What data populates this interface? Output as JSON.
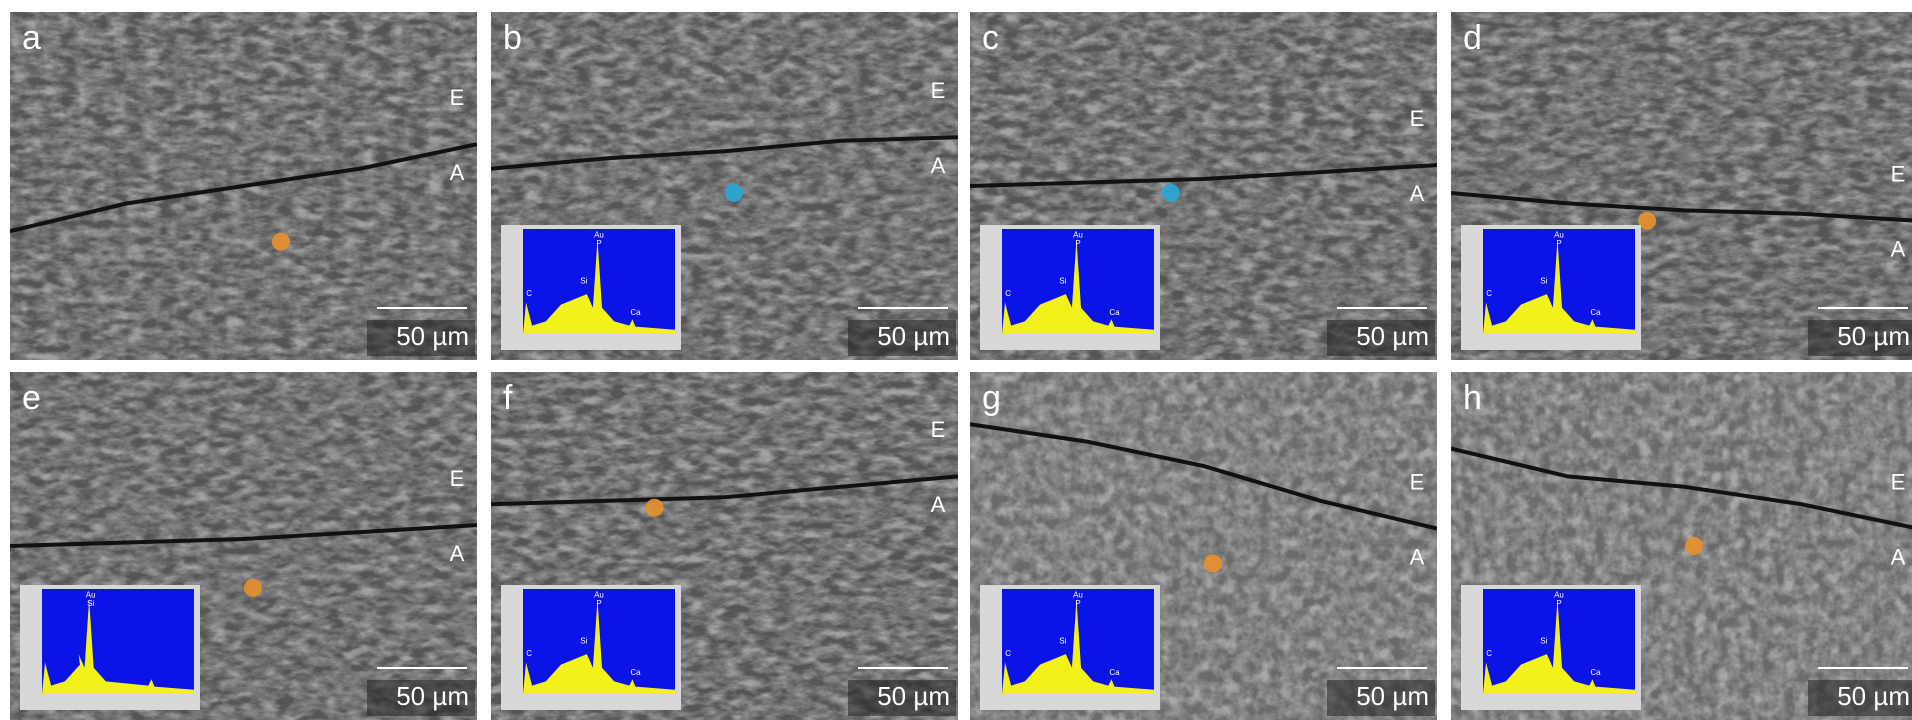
{
  "panels": [
    {
      "label": "a",
      "layers": [
        "E",
        "A"
      ],
      "scale_bar": "50 µm",
      "marker_color": "#e8902c"
    },
    {
      "label": "b",
      "layers": [
        "E",
        "A"
      ],
      "scale_bar": "50 µm",
      "marker_color": "#2aa6d8",
      "inset_labels": [
        "Au",
        "P",
        "Si",
        "C",
        "Ca"
      ]
    },
    {
      "label": "c",
      "layers": [
        "E",
        "A"
      ],
      "scale_bar": "50 µm",
      "marker_color": "#2aa6d8",
      "inset_labels": [
        "Au",
        "P",
        "Si",
        "C",
        "Ca"
      ]
    },
    {
      "label": "d",
      "layers": [
        "E",
        "A"
      ],
      "scale_bar": "50 µm",
      "marker_color": "#e8902c",
      "inset_labels": [
        "Au",
        "P",
        "Si",
        "C",
        "Ca"
      ]
    },
    {
      "label": "e",
      "layers": [
        "E",
        "A"
      ],
      "scale_bar": "50 µm",
      "marker_color": "#e8902c",
      "inset_labels": [
        "Au",
        "Si"
      ]
    },
    {
      "label": "f",
      "layers": [
        "E",
        "A"
      ],
      "scale_bar": "50 µm",
      "marker_color": "#e8902c",
      "inset_labels": [
        "Au",
        "P",
        "Si",
        "C",
        "Ca"
      ]
    },
    {
      "label": "g",
      "layers": [
        "E",
        "A"
      ],
      "scale_bar": "50 µm",
      "marker_color": "#e8902c",
      "inset_labels": [
        "Au",
        "P",
        "Si",
        "C",
        "Ca"
      ]
    },
    {
      "label": "h",
      "layers": [
        "E",
        "A"
      ],
      "scale_bar": "50 µm",
      "marker_color": "#e8902c",
      "inset_labels": [
        "Au",
        "P",
        "Si",
        "C",
        "Ca"
      ]
    }
  ]
}
